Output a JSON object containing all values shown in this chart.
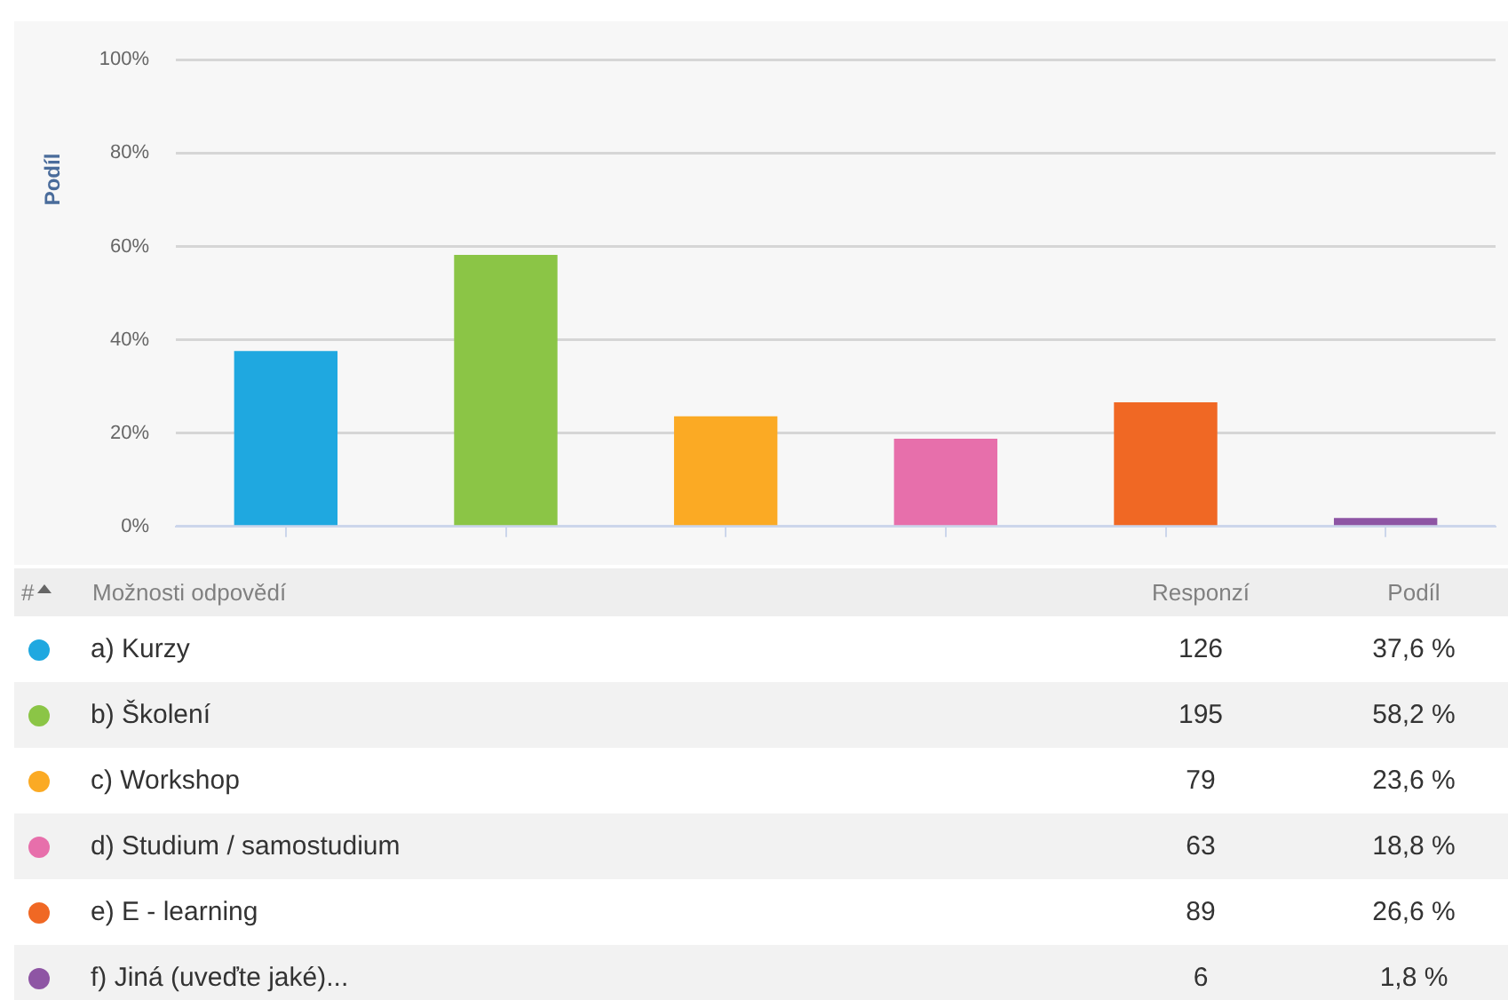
{
  "chart_data": {
    "type": "bar",
    "ylabel": "Podíl",
    "legend_title": "Možnosti odpovědí",
    "categories": [
      null,
      null,
      null,
      null,
      null,
      null
    ],
    "series": [
      {
        "name": "a) Kurzy",
        "color": "#1fa8e0",
        "values": [
          37.6,
          null,
          null,
          null,
          null,
          null
        ]
      },
      {
        "name": "b) Školení",
        "color": "#8bc546",
        "values": [
          null,
          58.2,
          null,
          null,
          null,
          null
        ]
      },
      {
        "name": "c) Workshop",
        "color": "#fbaa24",
        "values": [
          null,
          null,
          23.6,
          null,
          null,
          null
        ]
      },
      {
        "name": "d) Studium / samostudium",
        "color": "#e76fab",
        "values": [
          null,
          null,
          null,
          18.8,
          null,
          null
        ]
      },
      {
        "name": "e) E - learning",
        "color": "#f06824",
        "values": [
          null,
          null,
          null,
          null,
          26.6,
          null
        ]
      },
      {
        "name": "f) Jiná (uveďte jaké)...",
        "color": "#8e55a4",
        "values": [
          null,
          null,
          null,
          null,
          null,
          1.8
        ]
      }
    ],
    "ylim": [
      0,
      100
    ],
    "yticks": [
      {
        "value": 0,
        "label": "0%"
      },
      {
        "value": 20,
        "label": "20%"
      },
      {
        "value": 40,
        "label": "40%"
      },
      {
        "value": 60,
        "label": "60%"
      },
      {
        "value": 80,
        "label": "80%"
      },
      {
        "value": 100,
        "label": "100%"
      }
    ],
    "grid": "y",
    "legend": "bottom",
    "tick_labels": "y",
    "annotations": [
      "#",
      "Responzí",
      "Podíl",
      "126",
      "37,6 %",
      "195",
      "58,2 %",
      "79",
      "23,6 %",
      "63",
      "18,8 %",
      "89",
      "26,6 %",
      "6",
      "1,8 %"
    ]
  }
}
